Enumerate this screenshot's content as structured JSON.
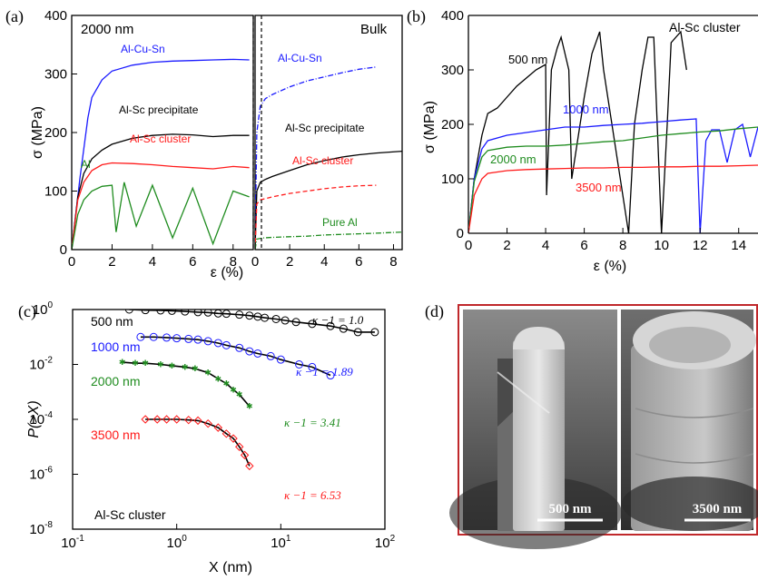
{
  "panels": {
    "a": {
      "letter": "(a)",
      "sub_left": "2000 nm",
      "sub_right": "Bulk"
    },
    "b": {
      "letter": "(b)",
      "tag": "Al-Sc cluster"
    },
    "c": {
      "letter": "(c)",
      "tag": "Al-Sc cluster"
    },
    "d": {
      "letter": "(d)",
      "scale_left": "500 nm",
      "scale_right": "3500 nm"
    }
  },
  "colors": {
    "blue": "#1a1aff",
    "black": "#000000",
    "red": "#ff1a1a",
    "green": "#1f8c1f",
    "frame_d": "#c0282b"
  },
  "chart_data": [
    {
      "id": "a-left",
      "type": "line",
      "title": "2000 nm",
      "xlabel": "ε (%)",
      "ylabel": "σ (MPa)",
      "xlim": [
        0,
        9
      ],
      "ylim": [
        0,
        400
      ],
      "xticks": [
        "0",
        "2",
        "4",
        "6",
        "8"
      ],
      "yticks": [
        "0",
        "100",
        "200",
        "300",
        "400"
      ],
      "series": [
        {
          "name": "Al-Cu-Sn",
          "color": "#1a1aff",
          "x": [
            0,
            0.4,
            0.8,
            1.0,
            1.5,
            2,
            3,
            4,
            5,
            6,
            7,
            8,
            8.8
          ],
          "y": [
            0,
            120,
            225,
            260,
            290,
            305,
            315,
            320,
            322,
            323,
            324,
            325,
            324
          ]
        },
        {
          "name": "Al-Sc precipitate",
          "color": "#000000",
          "x": [
            0,
            0.3,
            0.6,
            1,
            1.5,
            2,
            3,
            4,
            5,
            6,
            7,
            8,
            8.8
          ],
          "y": [
            0,
            90,
            130,
            155,
            170,
            180,
            190,
            195,
            197,
            196,
            193,
            195,
            195
          ]
        },
        {
          "name": "Al-Sc cluster",
          "color": "#ff1a1a",
          "x": [
            0,
            0.3,
            0.6,
            1,
            1.5,
            2,
            3,
            4,
            5,
            6,
            7,
            8,
            8.8
          ],
          "y": [
            0,
            85,
            115,
            135,
            145,
            148,
            147,
            145,
            142,
            140,
            138,
            142,
            140
          ]
        },
        {
          "name": "Al",
          "color": "#1f8c1f",
          "x": [
            0,
            0.3,
            0.6,
            1,
            1.5,
            2,
            2.2,
            2.6,
            3.2,
            4,
            5,
            6,
            7,
            8,
            8.8
          ],
          "y": [
            0,
            60,
            85,
            100,
            108,
            110,
            30,
            115,
            40,
            110,
            20,
            105,
            10,
            100,
            90
          ]
        }
      ]
    },
    {
      "id": "a-right",
      "type": "line",
      "title": "Bulk",
      "xlabel": "ε (%)",
      "xlim": [
        0,
        8.5
      ],
      "ylim": [
        0,
        400
      ],
      "xticks": [
        "0",
        "2",
        "4",
        "6",
        "8"
      ],
      "series": [
        {
          "name": "Al-Cu-Sn",
          "color": "#1a1aff",
          "x": [
            0,
            0.1,
            0.3,
            0.6,
            1,
            2,
            3,
            4,
            5,
            6,
            7
          ],
          "y": [
            0,
            200,
            245,
            258,
            265,
            278,
            288,
            295,
            302,
            308,
            312
          ]
        },
        {
          "name": "Al-Sc precipitate",
          "color": "#000000",
          "x": [
            0,
            0.1,
            0.3,
            0.6,
            1,
            2,
            3,
            4,
            5,
            6,
            7,
            8.5
          ],
          "y": [
            0,
            100,
            115,
            120,
            125,
            135,
            145,
            152,
            158,
            162,
            165,
            168
          ]
        },
        {
          "name": "Al-Sc cluster",
          "color": "#ff1a1a",
          "x": [
            0,
            0.1,
            0.3,
            1,
            2,
            3,
            4,
            5,
            6,
            7
          ],
          "y": [
            0,
            78,
            85,
            90,
            96,
            100,
            104,
            107,
            109,
            110
          ]
        },
        {
          "name": "Pure Al",
          "color": "#1f8c1f",
          "x": [
            0,
            0.1,
            0.5,
            1,
            2,
            3,
            4,
            5,
            6,
            7,
            8.5
          ],
          "y": [
            0,
            18,
            20,
            21,
            22,
            23,
            25,
            26,
            27,
            28,
            30
          ]
        }
      ]
    },
    {
      "id": "b",
      "type": "line",
      "xlabel": "ε (%)",
      "ylabel": "σ (MPa)",
      "xlim": [
        0,
        15
      ],
      "ylim": [
        0,
        400
      ],
      "xticks": [
        "0",
        "2",
        "4",
        "6",
        "8",
        "10",
        "12",
        "14"
      ],
      "yticks": [
        "0",
        "100",
        "200",
        "300",
        "400"
      ],
      "series": [
        {
          "name": "500 nm",
          "color": "#000000",
          "x": [
            0,
            0.3,
            0.7,
            1,
            1.5,
            2,
            2.5,
            3,
            3.5,
            4,
            4.05,
            4.3,
            4.6,
            4.8,
            5.2,
            5.35,
            6,
            6.4,
            6.8,
            7.0,
            8.3,
            8.6,
            9,
            9.3,
            9.6,
            10,
            10.3,
            10.5,
            11,
            11.3
          ],
          "y": [
            0,
            100,
            180,
            220,
            230,
            250,
            270,
            285,
            300,
            310,
            70,
            300,
            340,
            360,
            300,
            100,
            250,
            330,
            370,
            300,
            0,
            200,
            300,
            360,
            360,
            0,
            200,
            350,
            370,
            300
          ]
        },
        {
          "name": "1000 nm",
          "color": "#1a1aff",
          "x": [
            0,
            0.3,
            0.7,
            1,
            2,
            3,
            4,
            5,
            6,
            7,
            8,
            9,
            10,
            11,
            11.8,
            12,
            12.3,
            12.6,
            13,
            13.4,
            13.8,
            14.2,
            14.6,
            15
          ],
          "y": [
            0,
            100,
            155,
            170,
            180,
            185,
            190,
            195,
            195,
            198,
            200,
            202,
            205,
            208,
            210,
            0,
            170,
            190,
            190,
            130,
            190,
            200,
            140,
            195
          ]
        },
        {
          "name": "2000 nm",
          "color": "#1f8c1f",
          "x": [
            0,
            0.3,
            0.7,
            1,
            2,
            3,
            4,
            5,
            6,
            7,
            8,
            9,
            10,
            11,
            12,
            13,
            14,
            15
          ],
          "y": [
            0,
            95,
            140,
            152,
            158,
            160,
            160,
            162,
            165,
            168,
            170,
            175,
            180,
            183,
            186,
            188,
            192,
            195
          ]
        },
        {
          "name": "3500 nm",
          "color": "#ff1a1a",
          "x": [
            0,
            0.3,
            0.7,
            1,
            2,
            3,
            4,
            5,
            6,
            7,
            8,
            9,
            10,
            11,
            12,
            13,
            14,
            15
          ],
          "y": [
            0,
            70,
            100,
            110,
            115,
            117,
            118,
            119,
            120,
            120,
            121,
            121,
            122,
            122,
            123,
            123,
            124,
            125
          ]
        }
      ]
    },
    {
      "id": "c",
      "type": "scatter",
      "xlabel": "X (nm)",
      "ylabel": "P(>X)",
      "xscale": "log",
      "yscale": "log",
      "xlim": [
        0.1,
        100
      ],
      "ylim": [
        1e-08,
        1
      ],
      "xticks": [
        "10",
        "10",
        "10",
        "10"
      ],
      "xtick_exps": [
        "-1",
        "0",
        "1",
        "2"
      ],
      "yticks": [
        "10",
        "10",
        "10",
        "10",
        "10"
      ],
      "ytick_exps": [
        "-8",
        "-6",
        "-4",
        "-2",
        "0"
      ],
      "series": [
        {
          "name": "500 nm",
          "color": "#000000",
          "marker": "circle",
          "kappa_label": "κ −1 = 1.0",
          "x": [
            0.35,
            0.5,
            0.7,
            0.9,
            1.2,
            1.6,
            2,
            2.5,
            3,
            4,
            5,
            6,
            7,
            9,
            11,
            14,
            20,
            30,
            40,
            55,
            80
          ],
          "y": [
            1.0,
            0.95,
            0.93,
            0.9,
            0.85,
            0.8,
            0.78,
            0.72,
            0.7,
            0.65,
            0.6,
            0.55,
            0.5,
            0.45,
            0.4,
            0.35,
            0.3,
            0.25,
            0.2,
            0.15,
            0.15
          ]
        },
        {
          "name": "1000 nm",
          "color": "#1a1aff",
          "marker": "circle",
          "kappa_label": "κ −1 = 1.89",
          "x": [
            0.45,
            0.6,
            0.8,
            1,
            1.3,
            1.6,
            2,
            2.5,
            3,
            4,
            5,
            6,
            8,
            10,
            15,
            20,
            30
          ],
          "y": [
            0.1,
            0.1,
            0.095,
            0.09,
            0.085,
            0.08,
            0.07,
            0.06,
            0.05,
            0.04,
            0.03,
            0.025,
            0.02,
            0.015,
            0.01,
            0.008,
            0.004
          ]
        },
        {
          "name": "2000 nm",
          "color": "#1f8c1f",
          "marker": "star",
          "kappa_label": "κ −1 = 3.41",
          "x": [
            0.3,
            0.4,
            0.5,
            0.7,
            0.9,
            1.2,
            1.5,
            2,
            2.5,
            3,
            3.5,
            4,
            5
          ],
          "y": [
            0.012,
            0.011,
            0.011,
            0.01,
            0.009,
            0.008,
            0.007,
            0.005,
            0.003,
            0.002,
            0.0012,
            0.0008,
            0.0003
          ]
        },
        {
          "name": "3500 nm",
          "color": "#ff1a1a",
          "marker": "diamond",
          "kappa_label": "κ −1 = 6.53",
          "x": [
            0.5,
            0.65,
            0.8,
            1,
            1.3,
            1.6,
            2,
            2.5,
            3,
            3.5,
            4,
            4.5,
            5
          ],
          "y": [
            0.0001,
            0.0001,
            0.0001,
            0.0001,
            9.5e-05,
            9e-05,
            7e-05,
            5e-05,
            3e-05,
            2e-05,
            1e-05,
            5e-06,
            2e-06
          ]
        }
      ]
    }
  ]
}
